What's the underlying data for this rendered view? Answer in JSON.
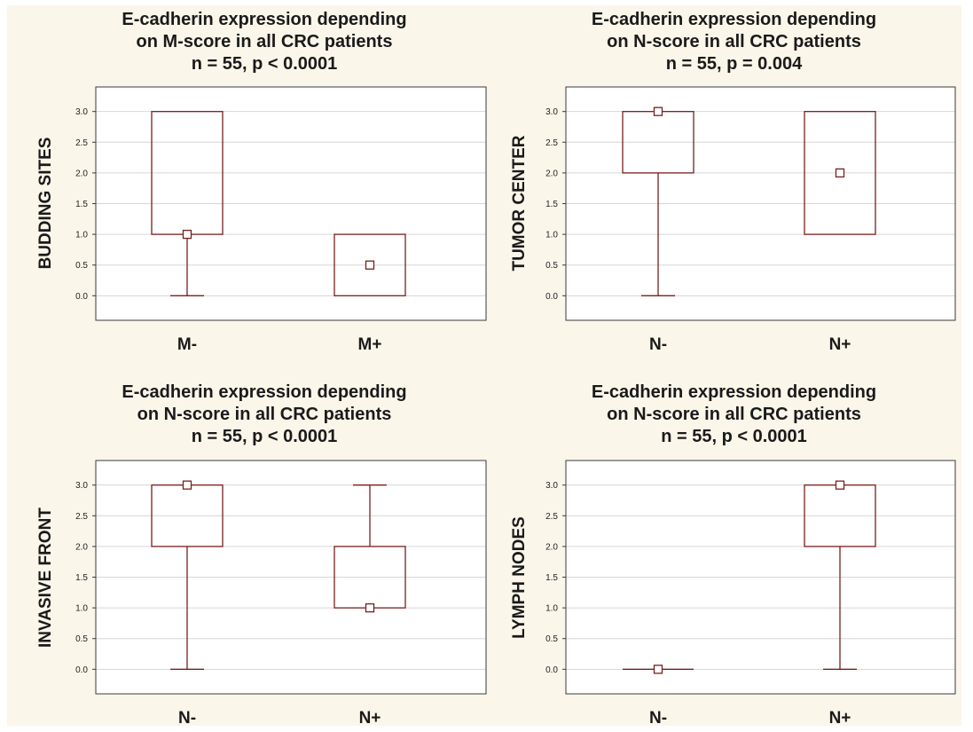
{
  "style": {
    "page_background": "#ffffff",
    "figure_background": "#fbf6ea",
    "plot_background": "#ffffff",
    "box_color": "#7a1f1f",
    "axis_color": "#3a3a3a",
    "grid_color": "#d6d6d6",
    "text_color": "#1a1a1a"
  },
  "chart_data": [
    {
      "type": "box",
      "title_lines": [
        "E-cadherin expression depending",
        "on M-score in all CRC patients",
        "n = 55, p < 0.0001"
      ],
      "ylabel": "BUDDING SITES",
      "xlabel": "",
      "ylim": [
        -0.4,
        3.4
      ],
      "yticks": [
        0.0,
        0.5,
        1.0,
        1.5,
        2.0,
        2.5,
        3.0
      ],
      "ytick_labels": [
        "0.0",
        "0.5",
        "1.0",
        "1.5",
        "2.0",
        "2.5",
        "3.0"
      ],
      "grid": true,
      "categories": [
        "M-",
        "M+"
      ],
      "groups": [
        {
          "name": "M-",
          "median": 1.0,
          "q1": 1.0,
          "q3": 3.0,
          "min": 0.0,
          "max": 3.0
        },
        {
          "name": "M+",
          "median": 0.5,
          "q1": 0.0,
          "q3": 1.0,
          "min": 0.0,
          "max": 1.0
        }
      ]
    },
    {
      "type": "box",
      "title_lines": [
        "E-cadherin expression depending",
        "on N-score in all CRC patients",
        "n = 55, p = 0.004"
      ],
      "ylabel": "TUMOR CENTER",
      "xlabel": "",
      "ylim": [
        -0.4,
        3.4
      ],
      "yticks": [
        0.0,
        0.5,
        1.0,
        1.5,
        2.0,
        2.5,
        3.0
      ],
      "ytick_labels": [
        "0.0",
        "0.5",
        "1.0",
        "1.5",
        "2.0",
        "2.5",
        "3.0"
      ],
      "grid": true,
      "categories": [
        "N-",
        "N+"
      ],
      "groups": [
        {
          "name": "N-",
          "median": 3.0,
          "q1": 2.0,
          "q3": 3.0,
          "min": 0.0,
          "max": 3.0
        },
        {
          "name": "N+",
          "median": 2.0,
          "q1": 1.0,
          "q3": 3.0,
          "min": 1.0,
          "max": 3.0
        }
      ]
    },
    {
      "type": "box",
      "title_lines": [
        "E-cadherin expression depending",
        "on N-score in all CRC patients",
        "n = 55, p < 0.0001"
      ],
      "ylabel": "INVASIVE FRONT",
      "xlabel": "",
      "ylim": [
        -0.4,
        3.4
      ],
      "yticks": [
        0.0,
        0.5,
        1.0,
        1.5,
        2.0,
        2.5,
        3.0
      ],
      "ytick_labels": [
        "0.0",
        "0.5",
        "1.0",
        "1.5",
        "2.0",
        "2.5",
        "3.0"
      ],
      "grid": true,
      "categories": [
        "N-",
        "N+"
      ],
      "groups": [
        {
          "name": "N-",
          "median": 3.0,
          "q1": 2.0,
          "q3": 3.0,
          "min": 0.0,
          "max": 3.0
        },
        {
          "name": "N+",
          "median": 1.0,
          "q1": 1.0,
          "q3": 2.0,
          "min": 1.0,
          "max": 3.0
        }
      ]
    },
    {
      "type": "box",
      "title_lines": [
        "E-cadherin expression depending",
        "on N-score in all CRC patients",
        "n = 55, p < 0.0001"
      ],
      "ylabel": "LYMPH NODES",
      "xlabel": "",
      "ylim": [
        -0.4,
        3.4
      ],
      "yticks": [
        0.0,
        0.5,
        1.0,
        1.5,
        2.0,
        2.5,
        3.0
      ],
      "ytick_labels": [
        "0.0",
        "0.5",
        "1.0",
        "1.5",
        "2.0",
        "2.5",
        "3.0"
      ],
      "grid": true,
      "categories": [
        "N-",
        "N+"
      ],
      "groups": [
        {
          "name": "N-",
          "median": 0.0,
          "q1": 0.0,
          "q3": 0.0,
          "min": 0.0,
          "max": 0.0
        },
        {
          "name": "N+",
          "median": 3.0,
          "q1": 2.0,
          "q3": 3.0,
          "min": 0.0,
          "max": 3.0
        }
      ]
    }
  ]
}
